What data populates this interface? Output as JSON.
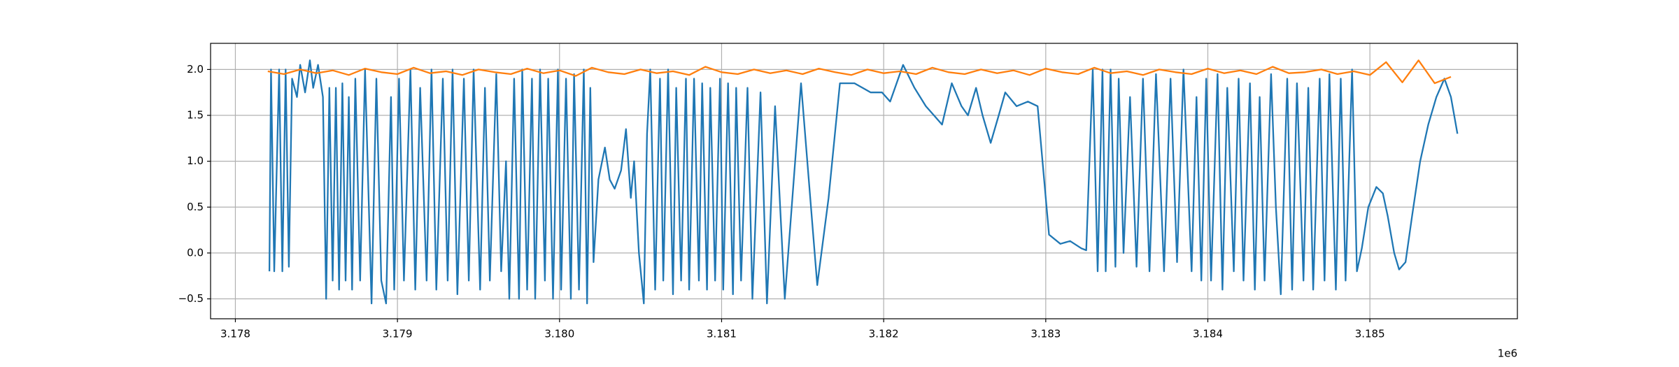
{
  "chart_data": {
    "type": "line",
    "x_offset_label": "1e6",
    "xlim": [
      3177847,
      3185910
    ],
    "ylim": [
      -0.717,
      2.285
    ],
    "xticks": [
      {
        "value": 3178000,
        "label": "3.178"
      },
      {
        "value": 3179000,
        "label": "3.179"
      },
      {
        "value": 3180000,
        "label": "3.180"
      },
      {
        "value": 3181000,
        "label": "3.181"
      },
      {
        "value": 3182000,
        "label": "3.182"
      },
      {
        "value": 3183000,
        "label": "3.183"
      },
      {
        "value": 3184000,
        "label": "3.184"
      },
      {
        "value": 3185000,
        "label": "3.185"
      }
    ],
    "yticks": [
      {
        "value": -0.5,
        "label": "−0.5"
      },
      {
        "value": 0,
        "label": "0.0"
      },
      0.5,
      {
        "value": 1,
        "label": "1.0"
      },
      1.5,
      {
        "value": 2,
        "label": "2.0"
      }
    ],
    "grid": true,
    "series": [
      {
        "color": "#1f77b4",
        "x": [
          3178210,
          3178220,
          3178240,
          3178270,
          3178290,
          3178310,
          3178330,
          3178350,
          3178380,
          3178400,
          3178430,
          3178460,
          3178480,
          3178510,
          3178540,
          3178560,
          3178580,
          3178600,
          3178620,
          3178640,
          3178660,
          3178680,
          3178700,
          3178720,
          3178740,
          3178770,
          3178800,
          3178840,
          3178870,
          3178900,
          3178930,
          3178960,
          3178980,
          3179010,
          3179040,
          3179080,
          3179110,
          3179140,
          3179180,
          3179210,
          3179240,
          3179280,
          3179310,
          3179340,
          3179370,
          3179410,
          3179440,
          3179470,
          3179510,
          3179540,
          3179570,
          3179610,
          3179640,
          3179670,
          3179690,
          3179720,
          3179750,
          3179770,
          3179800,
          3179830,
          3179850,
          3179880,
          3179910,
          3179930,
          3179960,
          3179990,
          3180010,
          3180040,
          3180070,
          3180090,
          3180120,
          3180150,
          3180170,
          3180190,
          3180210,
          3180240,
          3180280,
          3180310,
          3180340,
          3180380,
          3180410,
          3180440,
          3180460,
          3180490,
          3180520,
          3180540,
          3180560,
          3180590,
          3180620,
          3180640,
          3180670,
          3180700,
          3180720,
          3180750,
          3180780,
          3180800,
          3180830,
          3180860,
          3180880,
          3180910,
          3180930,
          3180960,
          3180990,
          3181010,
          3181040,
          3181070,
          3181090,
          3181120,
          3181160,
          3181190,
          3181240,
          3181280,
          3181330,
          3181390,
          3181490,
          3181590,
          3181660,
          3181730,
          3181820,
          3181920,
          3181990,
          3182040,
          3182120,
          3182190,
          3182260,
          3182310,
          3182360,
          3182420,
          3182480,
          3182520,
          3182570,
          3182610,
          3182660,
          3182710,
          3182750,
          3182820,
          3182890,
          3182950,
          3182990,
          3183020,
          3183090,
          3183150,
          3183220,
          3183250,
          3183290,
          3183320,
          3183350,
          3183370,
          3183400,
          3183430,
          3183450,
          3183480,
          3183520,
          3183560,
          3183600,
          3183640,
          3183680,
          3183730,
          3183770,
          3183810,
          3183850,
          3183900,
          3183930,
          3183960,
          3183990,
          3184020,
          3184060,
          3184090,
          3184120,
          3184160,
          3184190,
          3184220,
          3184260,
          3184290,
          3184320,
          3184350,
          3184390,
          3184420,
          3184450,
          3184490,
          3184520,
          3184550,
          3184590,
          3184620,
          3184650,
          3184690,
          3184720,
          3184750,
          3184790,
          3184820,
          3184850,
          3184890,
          3184920,
          3184950,
          3184990,
          3185040,
          3185080,
          3185110,
          3185150,
          3185180,
          3185220,
          3185260,
          3185310,
          3185360,
          3185410,
          3185460,
          3185500,
          3185540
        ],
        "values": [
          -0.2,
          2.0,
          -0.2,
          2.0,
          -0.2,
          2.0,
          -0.15,
          1.9,
          1.7,
          2.05,
          1.75,
          2.1,
          1.8,
          2.05,
          1.7,
          -0.5,
          1.8,
          -0.3,
          1.8,
          -0.4,
          1.85,
          -0.3,
          1.7,
          -0.4,
          1.9,
          -0.3,
          2.0,
          -0.55,
          1.9,
          -0.3,
          -0.55,
          1.7,
          -0.4,
          1.9,
          -0.3,
          2.0,
          -0.4,
          1.8,
          -0.3,
          2.0,
          -0.4,
          1.9,
          -0.3,
          2.0,
          -0.45,
          1.9,
          -0.3,
          2.0,
          -0.4,
          1.8,
          -0.3,
          1.95,
          -0.2,
          1.0,
          -0.5,
          1.9,
          -0.5,
          2.0,
          -0.4,
          1.9,
          -0.5,
          2.0,
          -0.3,
          1.9,
          -0.5,
          2.0,
          -0.4,
          1.9,
          -0.5,
          1.95,
          -0.4,
          2.0,
          -0.55,
          1.8,
          -0.1,
          0.8,
          1.15,
          0.8,
          0.7,
          0.9,
          1.35,
          0.6,
          1.0,
          0.0,
          -0.55,
          1.3,
          2.0,
          -0.4,
          1.9,
          -0.3,
          2.0,
          -0.45,
          1.8,
          -0.3,
          1.9,
          -0.4,
          1.9,
          -0.3,
          1.85,
          -0.4,
          1.8,
          -0.3,
          1.9,
          -0.4,
          1.85,
          -0.45,
          1.8,
          -0.3,
          1.8,
          -0.5,
          1.75,
          -0.55,
          1.6,
          -0.5,
          1.85,
          -0.35,
          0.6,
          1.85,
          1.85,
          1.75,
          1.75,
          1.65,
          2.05,
          1.8,
          1.6,
          1.5,
          1.4,
          1.85,
          1.6,
          1.5,
          1.8,
          1.5,
          1.2,
          1.5,
          1.75,
          1.6,
          1.65,
          1.6,
          0.8,
          0.2,
          0.1,
          0.13,
          0.05,
          0.03,
          2.0,
          -0.2,
          2.0,
          -0.2,
          2.0,
          -0.15,
          1.9,
          0.0,
          1.7,
          -0.15,
          1.9,
          -0.2,
          1.95,
          -0.2,
          1.9,
          -0.1,
          2.0,
          -0.2,
          1.7,
          -0.3,
          1.9,
          -0.3,
          1.95,
          -0.4,
          1.8,
          -0.2,
          1.9,
          -0.3,
          1.85,
          -0.4,
          1.7,
          -0.3,
          1.95,
          0.5,
          -0.45,
          1.9,
          -0.4,
          1.85,
          -0.3,
          1.8,
          -0.4,
          1.9,
          -0.3,
          1.95,
          -0.4,
          1.9,
          -0.3,
          2.0,
          -0.2,
          0.05,
          0.5,
          0.72,
          0.65,
          0.4,
          0.0,
          -0.18,
          -0.1,
          0.4,
          1.0,
          1.4,
          1.7,
          1.9,
          1.7,
          1.3
        ]
      },
      {
        "color": "#ff7f0e",
        "x": [
          3178200,
          3178300,
          3178400,
          3178500,
          3178600,
          3178700,
          3178800,
          3178900,
          3179000,
          3179100,
          3179200,
          3179300,
          3179400,
          3179500,
          3179600,
          3179700,
          3179800,
          3179900,
          3180000,
          3180100,
          3180200,
          3180300,
          3180400,
          3180500,
          3180600,
          3180700,
          3180800,
          3180900,
          3181000,
          3181100,
          3181200,
          3181300,
          3181400,
          3181500,
          3181600,
          3181700,
          3181800,
          3181900,
          3182000,
          3182100,
          3182200,
          3182300,
          3182400,
          3182500,
          3182600,
          3182700,
          3182800,
          3182900,
          3183000,
          3183100,
          3183200,
          3183300,
          3183400,
          3183500,
          3183600,
          3183700,
          3183800,
          3183900,
          3184000,
          3184100,
          3184200,
          3184300,
          3184400,
          3184500,
          3184600,
          3184700,
          3184800,
          3184900,
          3185000,
          3185100,
          3185200,
          3185300,
          3185400,
          3185500
        ],
        "values": [
          1.98,
          1.95,
          2.0,
          1.96,
          1.99,
          1.94,
          2.01,
          1.97,
          1.95,
          2.02,
          1.96,
          1.98,
          1.94,
          2.0,
          1.97,
          1.95,
          2.01,
          1.96,
          1.99,
          1.93,
          2.02,
          1.97,
          1.95,
          2.0,
          1.96,
          1.98,
          1.94,
          2.03,
          1.97,
          1.95,
          2.0,
          1.96,
          1.99,
          1.95,
          2.01,
          1.97,
          1.94,
          2.0,
          1.96,
          1.98,
          1.95,
          2.02,
          1.97,
          1.95,
          2.0,
          1.96,
          1.99,
          1.94,
          2.01,
          1.97,
          1.95,
          2.02,
          1.96,
          1.98,
          1.94,
          2.0,
          1.97,
          1.95,
          2.01,
          1.96,
          1.99,
          1.95,
          2.03,
          1.96,
          1.97,
          2.0,
          1.95,
          1.98,
          1.94,
          2.08,
          1.86,
          2.1,
          1.85,
          1.92
        ]
      }
    ]
  }
}
